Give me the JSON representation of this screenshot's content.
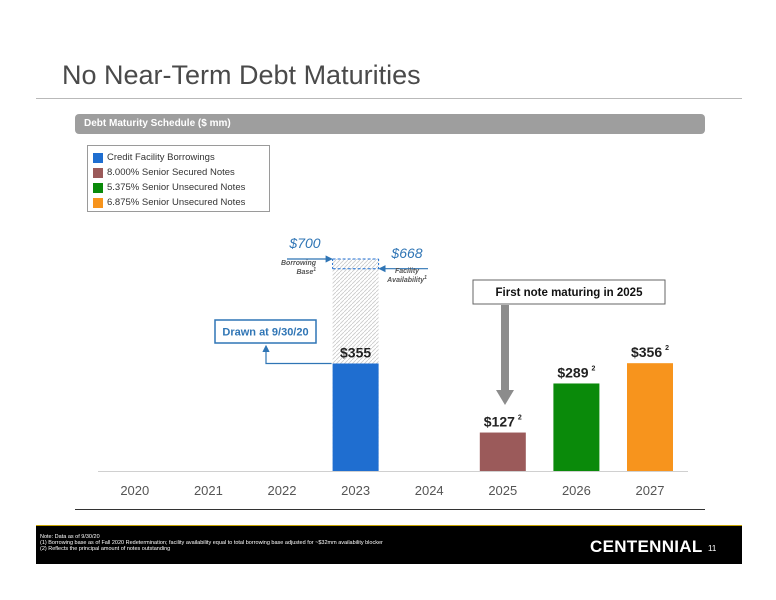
{
  "page": {
    "title": "No Near-Term Debt Maturities",
    "section_title": "Debt Maturity Schedule ($ mm)",
    "page_number": "11",
    "logo_text": "CENTENNIAL"
  },
  "colors": {
    "credit_facility": "#1f6ed0",
    "senior_secured": "#9b5a5a",
    "unsecured_5375": "#0a8a0a",
    "unsecured_6875": "#f7941d",
    "callout_blue": "#2f75b5",
    "arrow_gray": "#8c8c8c"
  },
  "chart_data": {
    "type": "bar",
    "title": "Debt Maturity Schedule ($ mm)",
    "categories": [
      "2020",
      "2021",
      "2022",
      "2023",
      "2024",
      "2025",
      "2026",
      "2027"
    ],
    "series": [
      {
        "name": "Credit Facility Borrowings",
        "values": [
          0,
          0,
          0,
          355,
          0,
          0,
          0,
          0
        ]
      },
      {
        "name": "8.000% Senior Secured Notes",
        "values": [
          0,
          0,
          0,
          0,
          0,
          127,
          0,
          0
        ]
      },
      {
        "name": "5.375% Senior Unsecured Notes",
        "values": [
          0,
          0,
          0,
          0,
          0,
          0,
          289,
          0
        ]
      },
      {
        "name": "6.875% Senior Unsecured Notes",
        "values": [
          0,
          0,
          0,
          0,
          0,
          0,
          0,
          356
        ]
      }
    ],
    "borrowing_base": 700,
    "facility_availability": 668,
    "ylim": [
      0,
      700
    ],
    "legend_position": "top-left",
    "grid": false,
    "bar_labels": [
      {
        "category": "2023",
        "text": "$355",
        "sup": ""
      },
      {
        "category": "2025",
        "text": "$127",
        "sup": "2"
      },
      {
        "category": "2026",
        "text": "$289",
        "sup": "2"
      },
      {
        "category": "2027",
        "text": "$356",
        "sup": "2"
      }
    ],
    "annotations": {
      "borrowing_base_value": "$700",
      "borrowing_base_label_1": "Borrowing",
      "borrowing_base_label_2": "Base",
      "borrowing_base_sup": "1",
      "facility_value": "$668",
      "facility_label_1": "Facility",
      "facility_label_2": "Availability",
      "facility_sup": "1",
      "drawn_callout": "Drawn at 9/30/20",
      "first_note_callout": "First note maturing in 2025"
    }
  },
  "footnotes": [
    "Note: Data as of 9/30/20",
    "(1)       Borrowing base as of Fall 2020 Redetermination; facility availability equal to total borrowing base adjusted for ~$32mm availability blocker",
    "(2)       Reflects the principal amount of notes outstanding"
  ]
}
